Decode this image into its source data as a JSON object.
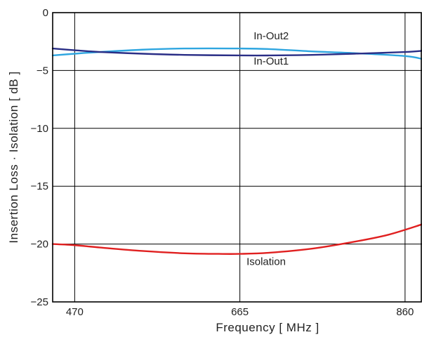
{
  "chart_data": {
    "type": "line",
    "title": "",
    "xlabel": "Frequency [ MHz ]",
    "ylabel": "Insertion Loss · Isolation [ dB ]",
    "xlim": [
      444,
      880
    ],
    "ylim": [
      -25,
      0
    ],
    "x_ticks": [
      {
        "value": 470,
        "label": "470"
      },
      {
        "value": 665,
        "label": "665"
      },
      {
        "value": 860,
        "label": "860"
      }
    ],
    "y_ticks": [
      {
        "value": 0,
        "label": "0"
      },
      {
        "value": -5,
        "label": "−5"
      },
      {
        "value": -10,
        "label": "−10"
      },
      {
        "value": -15,
        "label": "−15"
      },
      {
        "value": -20,
        "label": "−20"
      },
      {
        "value": -25,
        "label": "−25"
      }
    ],
    "grid": true,
    "series": [
      {
        "name": "In-Out2",
        "color": "#2fa6e0",
        "x": [
          444,
          470,
          500,
          550,
          600,
          665,
          700,
          750,
          800,
          860,
          880
        ],
        "y": [
          -3.7,
          -3.55,
          -3.4,
          -3.2,
          -3.1,
          -3.1,
          -3.15,
          -3.35,
          -3.5,
          -3.75,
          -4.0
        ]
      },
      {
        "name": "In-Out1",
        "color": "#2a2e86",
        "x": [
          444,
          470,
          500,
          550,
          600,
          665,
          700,
          750,
          800,
          860,
          880
        ],
        "y": [
          -3.1,
          -3.25,
          -3.4,
          -3.55,
          -3.65,
          -3.7,
          -3.7,
          -3.65,
          -3.55,
          -3.4,
          -3.3
        ]
      },
      {
        "name": "Isolation",
        "color": "#e02020",
        "x": [
          444,
          470,
          500,
          550,
          600,
          640,
          665,
          700,
          750,
          800,
          840,
          880
        ],
        "y": [
          -20.0,
          -20.1,
          -20.3,
          -20.6,
          -20.8,
          -20.85,
          -20.85,
          -20.75,
          -20.4,
          -19.8,
          -19.2,
          -18.3
        ]
      }
    ],
    "annotations": [
      {
        "text": "In-Out2",
        "x": 702,
        "y": -2.3
      },
      {
        "text": "In-Out1",
        "x": 702,
        "y": -4.5
      },
      {
        "text": "Isolation",
        "x": 696,
        "y": -21.8
      }
    ]
  }
}
